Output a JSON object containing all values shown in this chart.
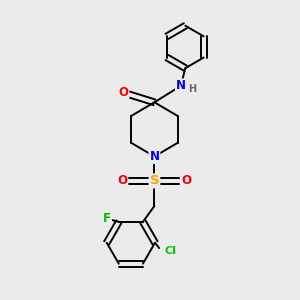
{
  "background_color": "#ebebeb",
  "bond_color": "#000000",
  "atom_colors": {
    "O": "#ff0000",
    "N": "#0000ff",
    "S": "#ffa500",
    "F": "#00bb00",
    "Cl": "#00cc00",
    "H": "#666666",
    "C": "#000000"
  },
  "figsize": [
    3.0,
    3.0
  ],
  "dpi": 100
}
